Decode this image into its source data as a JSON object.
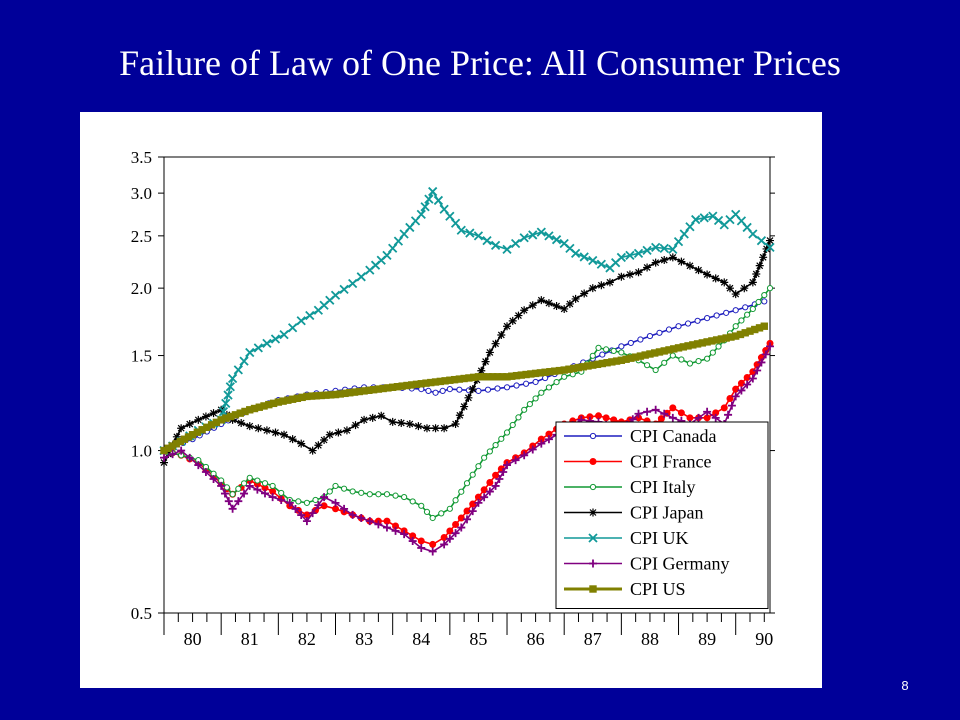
{
  "slide": {
    "title": "Failure of Law of One Price: All Consumer Prices",
    "page_number": "8"
  },
  "chart_data": {
    "type": "line",
    "title": "",
    "xlabel": "",
    "ylabel": "",
    "y_scale": "log",
    "ylim": [
      0.5,
      3.5
    ],
    "xlim": [
      1980,
      1990.6
    ],
    "x_ticks": [
      "80",
      "81",
      "82",
      "83",
      "84",
      "85",
      "86",
      "87",
      "88",
      "89",
      "90"
    ],
    "y_ticks": [
      0.5,
      1.0,
      1.5,
      2.0,
      2.5,
      3.0,
      3.5
    ],
    "y_tick_labels": [
      "0.5",
      "1.0",
      "1.5",
      "2.0",
      "2.5",
      "3.0",
      "3.5"
    ],
    "grid": false,
    "legend_position": "bottom-right",
    "series": [
      {
        "name": "CPI Canada",
        "color": "#1f1fbf",
        "marker": "circle-open",
        "x": [
          1980.0,
          1980.5,
          1981.0,
          1981.5,
          1982.0,
          1982.5,
          1983.0,
          1983.5,
          1984.0,
          1984.5,
          1984.75,
          1985.0,
          1985.5,
          1986.0,
          1986.5,
          1987.0,
          1987.5,
          1988.0,
          1988.5,
          1989.0,
          1989.5,
          1990.0,
          1990.5
        ],
        "y": [
          1.0,
          1.05,
          1.12,
          1.19,
          1.24,
          1.27,
          1.29,
          1.31,
          1.31,
          1.3,
          1.28,
          1.3,
          1.29,
          1.31,
          1.34,
          1.41,
          1.48,
          1.56,
          1.63,
          1.7,
          1.76,
          1.82,
          1.89
        ]
      },
      {
        "name": "CPI France",
        "color": "#ff0000",
        "marker": "dot",
        "x": [
          1980.0,
          1980.3,
          1980.6,
          1981.0,
          1981.2,
          1981.5,
          1981.9,
          1982.2,
          1982.5,
          1982.8,
          1983.0,
          1983.3,
          1983.6,
          1983.9,
          1984.2,
          1984.5,
          1984.7,
          1984.9,
          1985.2,
          1985.5,
          1985.8,
          1986.0,
          1986.3,
          1986.6,
          1987.0,
          1987.3,
          1987.6,
          1988.0,
          1988.3,
          1988.6,
          1988.9,
          1989.2,
          1989.5,
          1989.8,
          1990.0,
          1990.3,
          1990.6
        ],
        "y": [
          1.0,
          0.98,
          0.95,
          0.87,
          0.83,
          0.88,
          0.84,
          0.79,
          0.76,
          0.79,
          0.78,
          0.76,
          0.74,
          0.74,
          0.71,
          0.68,
          0.67,
          0.69,
          0.75,
          0.82,
          0.9,
          0.95,
          0.99,
          1.05,
          1.12,
          1.15,
          1.16,
          1.13,
          1.15,
          1.12,
          1.2,
          1.15,
          1.15,
          1.2,
          1.3,
          1.4,
          1.58
        ]
      },
      {
        "name": "CPI Italy",
        "color": "#119933",
        "marker": "circle-open",
        "x": [
          1980.0,
          1980.3,
          1980.6,
          1981.0,
          1981.2,
          1981.5,
          1981.9,
          1982.2,
          1982.5,
          1982.8,
          1983.0,
          1983.3,
          1983.6,
          1983.9,
          1984.2,
          1984.5,
          1984.7,
          1985.0,
          1985.3,
          1985.6,
          1986.0,
          1986.3,
          1986.6,
          1987.0,
          1987.3,
          1987.6,
          1988.0,
          1988.3,
          1988.6,
          1988.9,
          1989.2,
          1989.5,
          1989.8,
          1990.0,
          1990.3,
          1990.6
        ],
        "y": [
          1.0,
          0.98,
          0.96,
          0.88,
          0.83,
          0.89,
          0.86,
          0.81,
          0.8,
          0.82,
          0.86,
          0.84,
          0.83,
          0.83,
          0.82,
          0.79,
          0.75,
          0.78,
          0.87,
          0.97,
          1.08,
          1.19,
          1.28,
          1.37,
          1.4,
          1.55,
          1.52,
          1.47,
          1.41,
          1.5,
          1.45,
          1.48,
          1.6,
          1.7,
          1.83,
          2.0
        ]
      },
      {
        "name": "CPI Japan",
        "color": "#000000",
        "marker": "asterisk",
        "x": [
          1980.0,
          1980.3,
          1980.6,
          1981.0,
          1981.2,
          1981.5,
          1981.8,
          1982.1,
          1982.4,
          1982.6,
          1982.9,
          1983.2,
          1983.5,
          1983.8,
          1984.0,
          1984.3,
          1984.6,
          1984.9,
          1985.1,
          1985.4,
          1985.7,
          1986.0,
          1986.3,
          1986.6,
          1987.0,
          1987.2,
          1987.5,
          1987.8,
          1988.0,
          1988.3,
          1988.6,
          1988.9,
          1989.2,
          1989.5,
          1989.8,
          1990.0,
          1990.3,
          1990.6
        ],
        "y": [
          0.95,
          1.1,
          1.14,
          1.19,
          1.14,
          1.11,
          1.09,
          1.07,
          1.03,
          1.0,
          1.07,
          1.09,
          1.14,
          1.16,
          1.13,
          1.12,
          1.1,
          1.1,
          1.12,
          1.3,
          1.52,
          1.7,
          1.82,
          1.9,
          1.83,
          1.91,
          2.0,
          2.05,
          2.1,
          2.14,
          2.23,
          2.28,
          2.2,
          2.12,
          2.05,
          1.95,
          2.05,
          2.45
        ]
      },
      {
        "name": "CPI UK",
        "color": "#119999",
        "marker": "x",
        "x": [
          1980.0,
          1980.3,
          1980.6,
          1981.0,
          1981.2,
          1981.5,
          1981.8,
          1982.1,
          1982.4,
          1982.7,
          1983.0,
          1983.3,
          1983.6,
          1983.9,
          1984.2,
          1984.5,
          1984.7,
          1984.9,
          1985.2,
          1985.5,
          1985.8,
          1986.0,
          1986.3,
          1986.6,
          1987.0,
          1987.2,
          1987.5,
          1987.8,
          1988.0,
          1988.3,
          1988.6,
          1988.9,
          1989.1,
          1989.3,
          1989.6,
          1989.8,
          1990.0,
          1990.3,
          1990.6
        ],
        "y": [
          1.0,
          1.04,
          1.09,
          1.14,
          1.36,
          1.52,
          1.58,
          1.64,
          1.74,
          1.82,
          1.94,
          2.04,
          2.16,
          2.3,
          2.52,
          2.74,
          3.02,
          2.8,
          2.56,
          2.5,
          2.4,
          2.36,
          2.48,
          2.54,
          2.42,
          2.32,
          2.25,
          2.18,
          2.28,
          2.32,
          2.38,
          2.36,
          2.52,
          2.68,
          2.72,
          2.62,
          2.74,
          2.52,
          2.38
        ]
      },
      {
        "name": "CPI Germany",
        "color": "#800080",
        "marker": "plus",
        "x": [
          1980.0,
          1980.3,
          1980.6,
          1981.0,
          1981.2,
          1981.5,
          1981.9,
          1982.2,
          1982.5,
          1982.8,
          1983.0,
          1983.3,
          1983.6,
          1983.9,
          1984.2,
          1984.5,
          1984.7,
          1984.9,
          1985.2,
          1985.5,
          1985.8,
          1986.0,
          1986.3,
          1986.6,
          1987.0,
          1987.3,
          1987.6,
          1988.0,
          1988.3,
          1988.6,
          1988.9,
          1989.2,
          1989.5,
          1989.8,
          1990.0,
          1990.3,
          1990.6
        ],
        "y": [
          0.97,
          1.0,
          0.94,
          0.86,
          0.78,
          0.86,
          0.82,
          0.8,
          0.74,
          0.82,
          0.8,
          0.76,
          0.74,
          0.72,
          0.7,
          0.66,
          0.65,
          0.67,
          0.72,
          0.8,
          0.86,
          0.94,
          0.98,
          1.03,
          1.09,
          1.14,
          1.13,
          1.09,
          1.17,
          1.19,
          1.15,
          1.12,
          1.18,
          1.12,
          1.26,
          1.36,
          1.56
        ]
      },
      {
        "name": "CPI US",
        "color": "#808000",
        "marker": "square",
        "x": [
          1980.0,
          1980.5,
          1981.0,
          1981.5,
          1982.0,
          1982.5,
          1983.0,
          1983.5,
          1984.0,
          1984.5,
          1985.0,
          1985.5,
          1986.0,
          1986.5,
          1987.0,
          1987.5,
          1988.0,
          1988.5,
          1989.0,
          1989.5,
          1990.0,
          1990.5
        ],
        "y": [
          1.0,
          1.07,
          1.14,
          1.19,
          1.23,
          1.26,
          1.27,
          1.29,
          1.31,
          1.33,
          1.35,
          1.37,
          1.37,
          1.39,
          1.41,
          1.44,
          1.47,
          1.51,
          1.55,
          1.59,
          1.63,
          1.7
        ]
      }
    ]
  }
}
